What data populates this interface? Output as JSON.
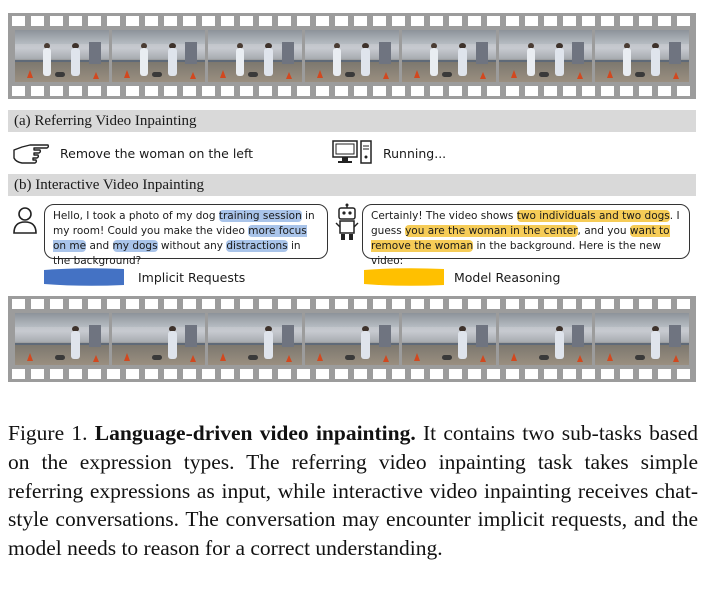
{
  "section_a": {
    "label": "(a) Referring Video Inpainting"
  },
  "section_b": {
    "label": "(b) Interactive Video Inpainting"
  },
  "referring": {
    "instruction": "Remove the woman on the left",
    "status": "Running..."
  },
  "chat": {
    "user": {
      "t1": "Hello, I took a photo of my dog ",
      "h1": "training session",
      "t2": " in my room! Could you make the video ",
      "h2": "more focus on me",
      "t3": " and ",
      "h3": "my dogs",
      "t4": " without any ",
      "h4": "distractions",
      "t5": " in the background?"
    },
    "model": {
      "t1": "Certainly! The video shows ",
      "h1": "two individuals and two dogs",
      "t2": ". I guess ",
      "h2": "you are the woman in the center",
      "t3": ", and you ",
      "h3": "want to remove the woman",
      "t4": " in the background. Here is the new video:"
    }
  },
  "legend": {
    "implicit": "Implicit Requests",
    "reasoning": "Model Reasoning"
  },
  "caption": {
    "prefix": "Figure 1.",
    "bold": "Language-driven video inpainting.",
    "body": "It contains two sub-tasks based on the expression types. The referring video inpainting task takes simple referring expressions as input, while interactive video inpainting receives chat-style conversations. The conversation may encounter implicit requests, and the model needs to reason for a correct understanding."
  },
  "colors": {
    "implicit": "#4472c4",
    "reasoning": "#ffc000",
    "strip": "#9c9c9c",
    "bar": "#d9d9d9"
  },
  "icons": [
    "pointing-hand-icon",
    "computer-icon",
    "user-icon",
    "robot-icon"
  ]
}
